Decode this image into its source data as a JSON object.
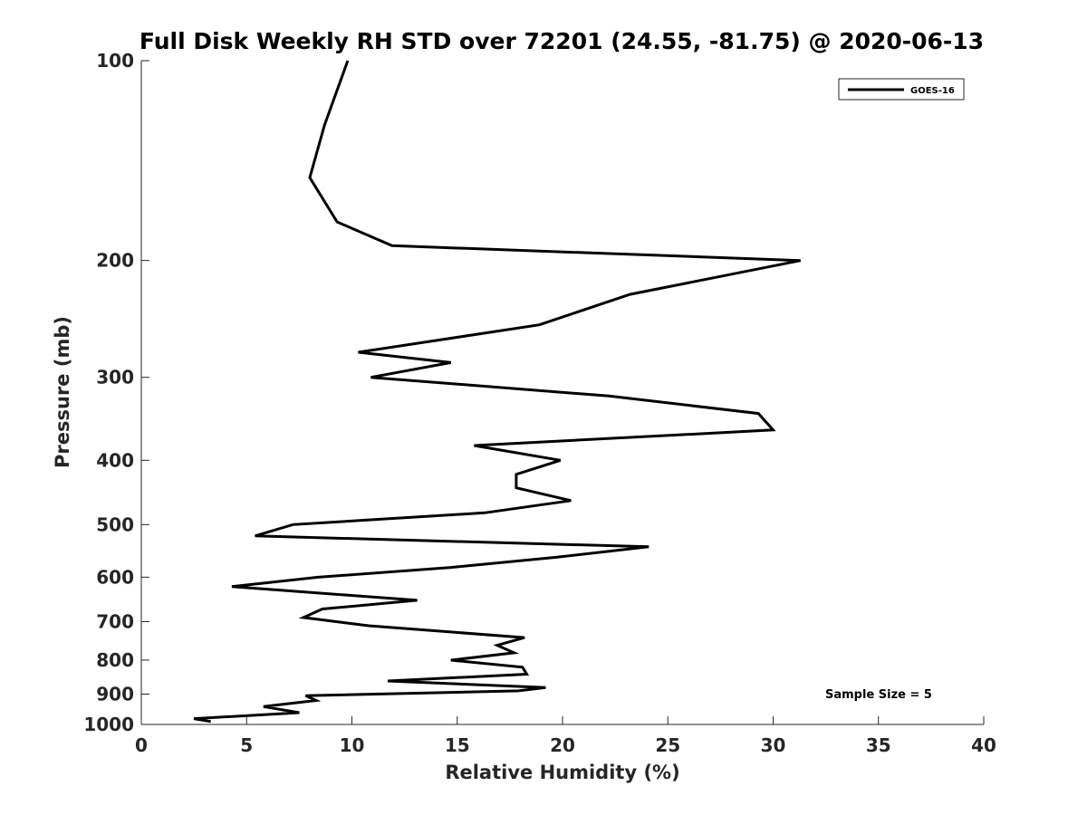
{
  "chart_data": {
    "type": "line",
    "title": "Full Disk Weekly RH STD over 72201 (24.55, -81.75) @ 2020-06-13",
    "xlabel": "Relative Humidity (%)",
    "ylabel": "Pressure (mb)",
    "xlim": [
      0,
      40
    ],
    "ylim": [
      100,
      1000
    ],
    "y_scale": "log",
    "y_reversed": true,
    "x_ticks": [
      0,
      5,
      10,
      15,
      20,
      25,
      30,
      35,
      40
    ],
    "y_ticks": [
      100,
      200,
      300,
      400,
      500,
      600,
      700,
      800,
      900,
      1000
    ],
    "grid": false,
    "legend_position": "top-right",
    "series": [
      {
        "name": "GOES-16",
        "color": "#000000",
        "points": [
          [
            9.8,
            100
          ],
          [
            8.7,
            125
          ],
          [
            8.0,
            150
          ],
          [
            9.3,
            175
          ],
          [
            11.9,
            190
          ],
          [
            31.3,
            200
          ],
          [
            23.2,
            225
          ],
          [
            18.9,
            250
          ],
          [
            10.3,
            275
          ],
          [
            14.7,
            285
          ],
          [
            10.9,
            300
          ],
          [
            22.2,
            320
          ],
          [
            29.3,
            340
          ],
          [
            30.0,
            360
          ],
          [
            15.8,
            380
          ],
          [
            19.9,
            400
          ],
          [
            17.8,
            420
          ],
          [
            17.8,
            440
          ],
          [
            20.4,
            460
          ],
          [
            16.3,
            480
          ],
          [
            7.2,
            500
          ],
          [
            5.4,
            520
          ],
          [
            24.1,
            540
          ],
          [
            19.7,
            560
          ],
          [
            14.7,
            580
          ],
          [
            8.4,
            600
          ],
          [
            4.3,
            620
          ],
          [
            13.1,
            650
          ],
          [
            8.6,
            670
          ],
          [
            7.7,
            690
          ],
          [
            10.8,
            710
          ],
          [
            18.2,
            740
          ],
          [
            16.9,
            760
          ],
          [
            17.7,
            780
          ],
          [
            14.7,
            800
          ],
          [
            18.1,
            820
          ],
          [
            18.3,
            840
          ],
          [
            11.7,
            860
          ],
          [
            19.2,
            880
          ],
          [
            17.9,
            890
          ],
          [
            7.8,
            905
          ],
          [
            8.3,
            920
          ],
          [
            5.8,
            940
          ],
          [
            7.5,
            960
          ],
          [
            2.5,
            980
          ],
          [
            3.3,
            990
          ]
        ]
      }
    ],
    "annotation": "Sample Size = 5"
  }
}
